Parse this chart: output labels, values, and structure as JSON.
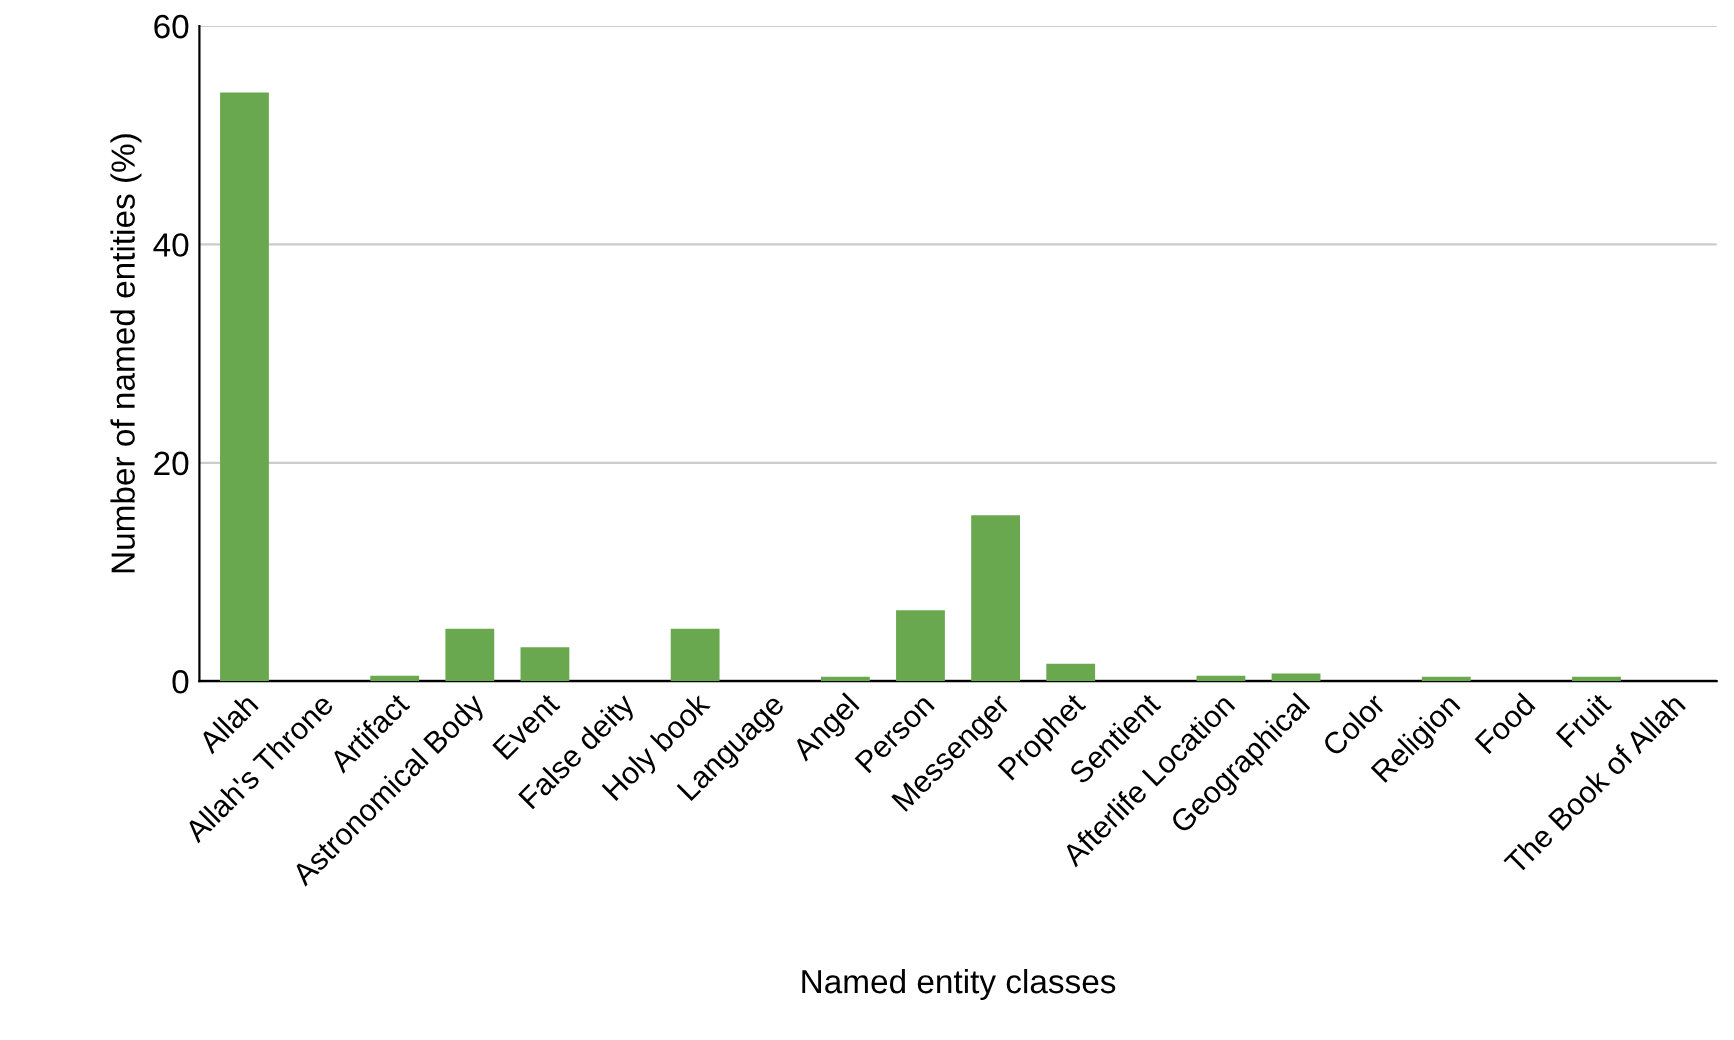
{
  "chart_data": {
    "type": "bar",
    "xlabel": "Named entity classes",
    "ylabel": "Number of named entities (%)",
    "categories": [
      "Allah",
      "Allah's Throne",
      "Artifact",
      "Astronomical Body",
      "Event",
      "False deity",
      "Holy book",
      "Language",
      "Angel",
      "Person",
      "Messenger",
      "Prophet",
      "Sentient",
      "Afterlife Location",
      "Geographical",
      "Color",
      "Religion",
      "Food",
      "Fruit",
      "The Book of Allah"
    ],
    "values": [
      53.9,
      0,
      0.5,
      4.8,
      3.1,
      0,
      4.8,
      0,
      0.4,
      6.5,
      15.2,
      1.6,
      0,
      0.5,
      0.7,
      0,
      0.4,
      0,
      0.4,
      0
    ],
    "color": "#6aa84f",
    "ylim": [
      0,
      60
    ],
    "yticks": [
      0,
      20,
      40,
      60
    ],
    "grid": "y",
    "legend": false
  }
}
